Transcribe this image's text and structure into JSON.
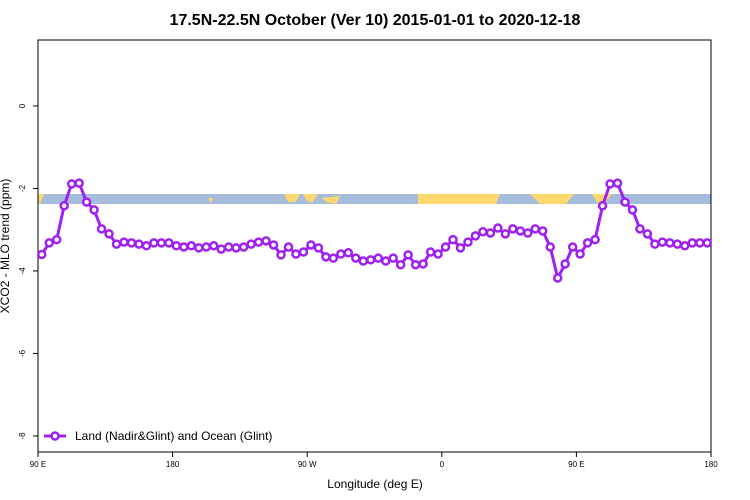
{
  "chart_data": {
    "type": "line",
    "title": "17.5N-22.5N October (Ver 10)   2015-01-01 to 2020-12-18",
    "x_label": "Longitude (deg E)",
    "y_label": "XCO2 - MLO trend (ppm)",
    "xlim": [
      90,
      540
    ],
    "ylim": [
      -8.39,
      1.6
    ],
    "xticks": [
      {
        "value": 90,
        "label": "90 E"
      },
      {
        "value": 180,
        "label": "180"
      },
      {
        "value": 270,
        "label": "90 W"
      },
      {
        "value": 360,
        "label": "0"
      },
      {
        "value": 450,
        "label": "90 E"
      },
      {
        "value": 540,
        "label": "180"
      }
    ],
    "yticks": [
      0,
      -2,
      -4,
      -6,
      -8
    ],
    "legend": "bottom-left",
    "x": [
      92.5,
      97.5,
      102.5,
      107.5,
      112.5,
      117.5,
      122.5,
      127.5,
      132.5,
      137.5,
      142.5,
      147.5,
      152.5,
      157.5,
      162.5,
      167.5,
      172.5,
      177.5,
      182.5,
      187.5,
      192.5,
      197.5,
      202.5,
      207.5,
      212.5,
      217.5,
      222.5,
      227.5,
      232.5,
      237.5,
      242.5,
      247.5,
      252.5,
      257.5,
      262.5,
      267.5,
      272.5,
      277.5,
      282.5,
      287.5,
      292.5,
      297.5,
      302.5,
      307.5,
      312.5,
      317.5,
      322.5,
      327.5,
      332.5,
      337.5,
      342.5,
      347.5,
      352.5,
      357.5,
      362.5,
      367.5,
      372.5,
      377.5,
      382.5,
      387.5,
      392.5,
      397.5,
      402.5,
      407.5,
      412.5,
      417.5,
      422.5,
      427.5,
      432.5,
      437.5,
      442.5,
      447.5,
      452.5,
      457.5,
      462.5,
      467.5,
      472.5,
      477.5,
      482.5,
      487.5,
      492.5,
      497.5,
      502.5,
      507.5,
      512.5,
      517.5,
      522.5,
      527.5,
      532.5,
      537.5
    ],
    "series": [
      {
        "name": "Land (Nadir&Glint) and Ocean (Glint)",
        "color": "#a020f0",
        "values": [
          -3.6,
          -3.32,
          -3.24,
          -2.42,
          -1.89,
          -1.87,
          -2.33,
          -2.52,
          -2.98,
          -3.1,
          -3.35,
          -3.3,
          -3.32,
          -3.35,
          -3.39,
          -3.32,
          -3.32,
          -3.32,
          -3.39,
          -3.42,
          -3.39,
          -3.44,
          -3.42,
          -3.39,
          -3.47,
          -3.42,
          -3.44,
          -3.42,
          -3.35,
          -3.3,
          -3.27,
          -3.37,
          -3.61,
          -3.42,
          -3.59,
          -3.54,
          -3.37,
          -3.44,
          -3.66,
          -3.69,
          -3.59,
          -3.56,
          -3.69,
          -3.76,
          -3.73,
          -3.69,
          -3.76,
          -3.69,
          -3.85,
          -3.61,
          -3.85,
          -3.83,
          -3.54,
          -3.59,
          -3.42,
          -3.24,
          -3.44,
          -3.3,
          -3.15,
          -3.05,
          -3.08,
          -2.96,
          -3.1,
          -2.98,
          -3.03,
          -3.08,
          -2.98,
          -3.03,
          -3.42,
          -4.17,
          -3.83,
          -3.42,
          -3.59,
          -3.32,
          -3.24,
          -2.42,
          -1.89,
          -1.87,
          -2.33,
          -2.52,
          -2.98,
          -3.1,
          -3.35,
          -3.3,
          -3.32,
          -3.35,
          -3.39,
          -3.32,
          -3.32,
          -3.32
        ]
      }
    ]
  }
}
